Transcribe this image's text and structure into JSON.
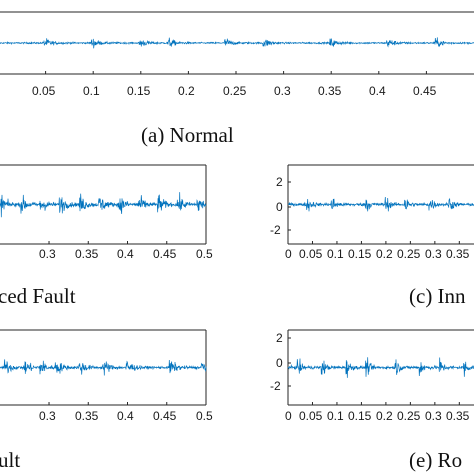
{
  "figure": {
    "captions": {
      "a": "(a) Normal",
      "b": "ced Fault",
      "c": "(c) Inn",
      "d": "ult",
      "e": "(e) Ro"
    }
  },
  "chart_data": [
    {
      "id": "a",
      "type": "line",
      "title": "(a) Normal",
      "x_ticks": [
        "0.05",
        "0.1",
        "0.15",
        "0.2",
        "0.25",
        "0.3",
        "0.35",
        "0.4",
        "0.45"
      ],
      "xlim": [
        0,
        0.5
      ],
      "ylim": [
        -3,
        3
      ],
      "series": [
        {
          "color": "#0072BD",
          "amplitude": 0.35,
          "bursts": [
            0.05,
            0.1,
            0.15,
            0.18,
            0.24,
            0.28,
            0.35,
            0.41,
            0.46
          ]
        }
      ]
    },
    {
      "id": "b",
      "type": "line",
      "title": "ced Fault",
      "x_ticks": [
        "0.3",
        "0.35",
        "0.4",
        "0.45",
        "0.5"
      ],
      "xlim": [
        0.235,
        0.5
      ],
      "ylim": [
        -3,
        3
      ],
      "series": [
        {
          "color": "#0072BD",
          "amplitude": 0.55,
          "bursts": [
            0.24,
            0.265,
            0.29,
            0.315,
            0.34,
            0.365,
            0.39,
            0.415,
            0.44,
            0.465,
            0.49
          ]
        }
      ]
    },
    {
      "id": "c",
      "type": "line",
      "title": "(c) Inn",
      "x_ticks": [
        "0",
        "0.05",
        "0.1",
        "0.15",
        "0.2",
        "0.25",
        "0.3",
        "0.35"
      ],
      "y_ticks": [
        "2",
        "0",
        "-2"
      ],
      "xlim": [
        0,
        0.38
      ],
      "ylim": [
        -3,
        3
      ],
      "series": [
        {
          "color": "#0072BD",
          "amplitude": 0.55,
          "bursts": [
            0.04,
            0.09,
            0.16,
            0.2,
            0.24,
            0.29,
            0.33
          ]
        }
      ]
    },
    {
      "id": "d",
      "type": "line",
      "title": "ult",
      "x_ticks": [
        "0.3",
        "0.35",
        "0.4",
        "0.45",
        "0.5"
      ],
      "xlim": [
        0.235,
        0.5
      ],
      "ylim": [
        -3,
        3
      ],
      "series": [
        {
          "color": "#0072BD",
          "amplitude": 0.5,
          "bursts": [
            0.245,
            0.27,
            0.29,
            0.31,
            0.34,
            0.37,
            0.4,
            0.455,
            0.495
          ]
        }
      ]
    },
    {
      "id": "e",
      "type": "line",
      "title": "(e) Ro",
      "x_ticks": [
        "0",
        "0.05",
        "0.1",
        "0.15",
        "0.2",
        "0.25",
        "0.3",
        "0.35"
      ],
      "y_ticks": [
        "2",
        "0",
        "-2"
      ],
      "xlim": [
        0,
        0.38
      ],
      "ylim": [
        -3,
        3
      ],
      "series": [
        {
          "color": "#0072BD",
          "amplitude": 0.6,
          "bursts": [
            0.02,
            0.07,
            0.12,
            0.16,
            0.22,
            0.27,
            0.31,
            0.36
          ]
        }
      ]
    }
  ]
}
